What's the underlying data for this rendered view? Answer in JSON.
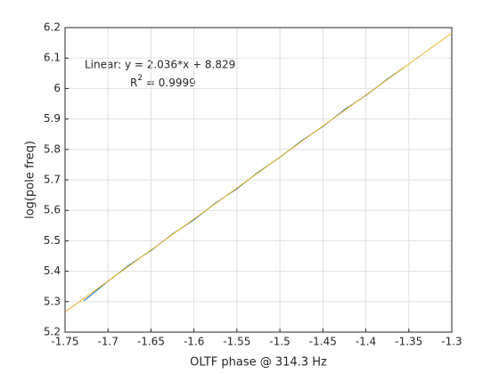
{
  "chart_data": {
    "type": "line",
    "xlabel": "OLTF phase @ 314.3 Hz",
    "ylabel": "log(pole freq)",
    "annotation": {
      "line1": "Linear:  y = 2.036*x + 8.829",
      "r": "R",
      "sup": "2",
      "rest": " = 0.9999"
    },
    "series": [
      {
        "color": "#0072bd",
        "x": [
          -1.728,
          -1.7,
          -1.675,
          -1.65,
          -1.625,
          -1.6,
          -1.575,
          -1.55,
          -1.525,
          -1.5,
          -1.475,
          -1.45,
          -1.425,
          -1.4,
          -1.375,
          -1.355
        ],
        "values": [
          5.303,
          5.367,
          5.421,
          5.468,
          5.522,
          5.569,
          5.624,
          5.671,
          5.726,
          5.774,
          5.828,
          5.875,
          5.93,
          5.977,
          6.031,
          6.07
        ]
      },
      {
        "color": "#edb120",
        "x": [
          -1.75,
          -1.3
        ],
        "values": [
          5.266,
          6.182
        ]
      }
    ],
    "xlim": [
      -1.75,
      -1.3
    ],
    "xticks": [
      -1.75,
      -1.7,
      -1.65,
      -1.6,
      -1.55,
      -1.5,
      -1.45,
      -1.4,
      -1.35,
      -1.3
    ],
    "ylim": [
      5.2,
      6.2
    ],
    "yticks": [
      5.2,
      5.3,
      5.4,
      5.5,
      5.6,
      5.7,
      5.8,
      5.9,
      6,
      6.1,
      6.2
    ],
    "grid": true
  }
}
